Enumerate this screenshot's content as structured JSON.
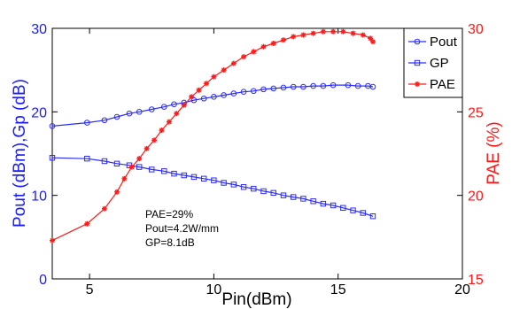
{
  "chart_data": {
    "type": "line",
    "xlabel": "Pin(dBm)",
    "ylabel_left": "Pout (dBm),Gp (dB)",
    "ylabel_right": "PAE (%)",
    "xlim": [
      3.5,
      20
    ],
    "ylim_left": [
      0,
      30
    ],
    "ylim_right": [
      15,
      30
    ],
    "xticks": [
      "5",
      "10",
      "15",
      "20"
    ],
    "yticks_left": [
      "0",
      "10",
      "20",
      "30"
    ],
    "yticks_right": [
      "15",
      "20",
      "25",
      "30"
    ],
    "grid": false,
    "legend_position": "top-right",
    "colors": {
      "left_axis": "#1a1aff",
      "right_axis": "#ff1a1a",
      "pout": "#2b2bff",
      "gp": "#2b2bff",
      "pae": "#ff1a1a"
    },
    "annotations": [
      "PAE=29%",
      "Pout=4.2W/mm",
      "GP=8.1dB"
    ],
    "series": [
      {
        "name": "Pout",
        "axis": "left",
        "marker": "circle",
        "x": [
          3.5,
          4.9,
          5.6,
          6.1,
          6.6,
          7.0,
          7.5,
          8.0,
          8.4,
          8.8,
          9.2,
          9.6,
          10.0,
          10.4,
          10.8,
          11.2,
          11.6,
          12.0,
          12.4,
          12.8,
          13.2,
          13.6,
          14.0,
          14.4,
          14.8,
          15.4,
          15.8,
          16.2,
          16.4
        ],
        "y": [
          18.3,
          18.7,
          19.0,
          19.4,
          19.8,
          20.0,
          20.3,
          20.6,
          20.9,
          21.1,
          21.4,
          21.6,
          21.8,
          22.0,
          22.2,
          22.4,
          22.5,
          22.7,
          22.8,
          22.9,
          23.0,
          23.0,
          23.1,
          23.1,
          23.2,
          23.2,
          23.1,
          23.1,
          23.0
        ]
      },
      {
        "name": "GP",
        "axis": "left",
        "marker": "square",
        "x": [
          3.5,
          4.9,
          5.6,
          6.1,
          6.6,
          7.0,
          7.5,
          8.0,
          8.4,
          8.8,
          9.2,
          9.6,
          10.0,
          10.4,
          10.8,
          11.2,
          11.6,
          12.0,
          12.4,
          12.8,
          13.2,
          13.6,
          14.0,
          14.4,
          14.8,
          15.2,
          15.6,
          16.0,
          16.4
        ],
        "y": [
          14.5,
          14.4,
          14.1,
          13.8,
          13.6,
          13.4,
          13.1,
          12.9,
          12.6,
          12.4,
          12.2,
          12.0,
          11.8,
          11.5,
          11.3,
          11.0,
          10.8,
          10.5,
          10.3,
          10.0,
          9.8,
          9.6,
          9.3,
          9.0,
          8.8,
          8.5,
          8.2,
          7.9,
          7.5
        ]
      },
      {
        "name": "PAE",
        "axis": "right",
        "marker": "star",
        "x": [
          3.5,
          4.9,
          5.6,
          6.1,
          6.4,
          6.7,
          7.0,
          7.3,
          7.6,
          7.9,
          8.2,
          8.5,
          8.8,
          9.1,
          9.4,
          9.7,
          10.0,
          10.4,
          10.8,
          11.2,
          11.6,
          12.0,
          12.4,
          12.8,
          13.2,
          13.6,
          14.0,
          14.4,
          14.8,
          15.2,
          15.6,
          16.0,
          16.3,
          16.4
        ],
        "y": [
          17.3,
          18.3,
          19.2,
          20.2,
          21.0,
          21.7,
          22.2,
          22.8,
          23.3,
          23.9,
          24.4,
          24.9,
          25.4,
          25.9,
          26.3,
          26.7,
          27.1,
          27.5,
          27.9,
          28.3,
          28.6,
          28.9,
          29.1,
          29.3,
          29.5,
          29.6,
          29.7,
          29.8,
          29.8,
          29.8,
          29.7,
          29.6,
          29.4,
          29.2
        ]
      }
    ]
  }
}
